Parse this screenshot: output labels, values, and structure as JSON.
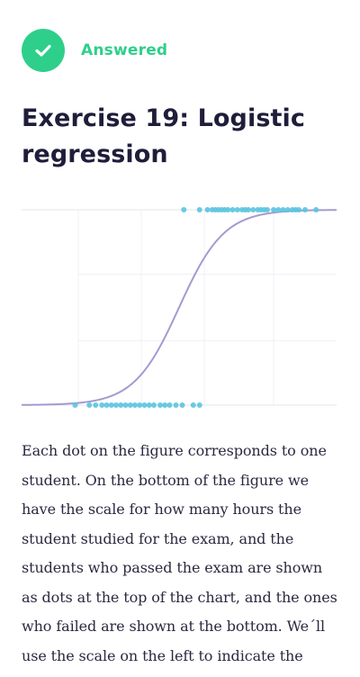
{
  "status": {
    "icon": "check-icon",
    "label": "Answered",
    "color": "#2ecf8a"
  },
  "exercise": {
    "title": "Exercise 19: Logistic regression"
  },
  "chart_data": {
    "type": "scatter",
    "title": "",
    "xlabel": "",
    "ylabel": "",
    "ylim": [
      0,
      1
    ],
    "grid": true,
    "curve": {
      "type": "logistic",
      "color": "#a59ad0"
    },
    "series": [
      {
        "outcome": 1,
        "color": "#5bc4e0",
        "x": [
          0.515,
          0.565,
          0.59,
          0.605,
          0.615,
          0.625,
          0.635,
          0.645,
          0.655,
          0.67,
          0.685,
          0.7,
          0.71,
          0.72,
          0.735,
          0.75,
          0.76,
          0.77,
          0.78,
          0.8,
          0.815,
          0.83,
          0.845,
          0.86,
          0.87,
          0.88,
          0.9,
          0.935
        ]
      },
      {
        "outcome": 0,
        "color": "#5bc4e0",
        "x": [
          0.17,
          0.215,
          0.235,
          0.255,
          0.27,
          0.285,
          0.3,
          0.315,
          0.33,
          0.345,
          0.36,
          0.375,
          0.39,
          0.405,
          0.42,
          0.44,
          0.455,
          0.47,
          0.49,
          0.51,
          0.545,
          0.565
        ]
      }
    ]
  },
  "body": {
    "paragraph": "Each dot on the figure corresponds to one student. On the bottom of the figure we have the scale for how many hours the student studied for the exam, and the students who passed the exam are shown as dots at the top of the chart, and the ones who failed are shown at the bottom. We´ll use the scale on the left to indicate the"
  }
}
